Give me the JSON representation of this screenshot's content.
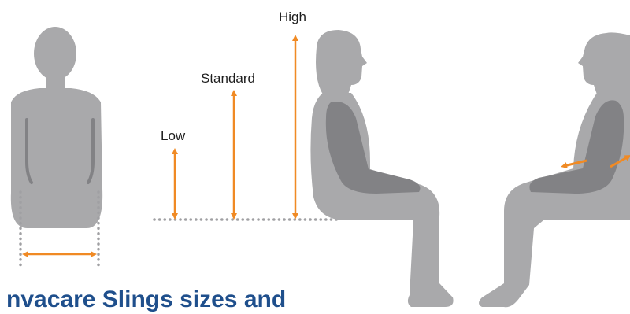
{
  "labels": {
    "high": "High",
    "standard": "Standard",
    "low": "Low"
  },
  "caption": "nvacare Slings sizes and",
  "colors": {
    "figure": "#a9a9ab",
    "figure_dark": "#828285",
    "arrow": "#f08a24",
    "dots": "#a0a0a3",
    "caption": "#1f4f8c"
  }
}
